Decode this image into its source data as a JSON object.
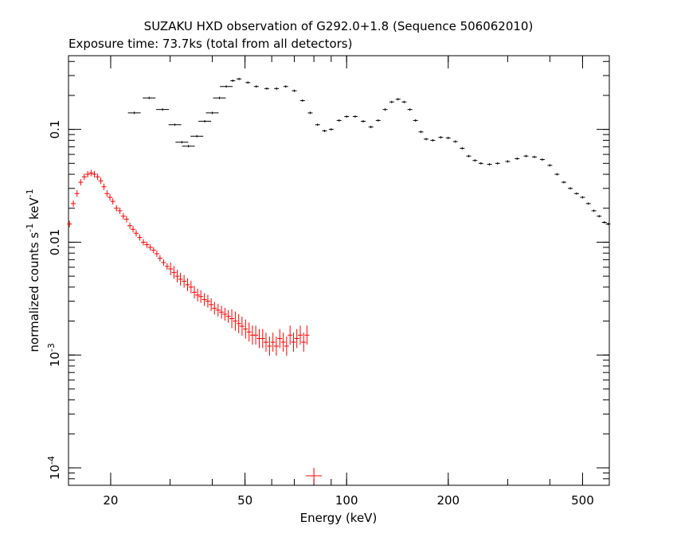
{
  "chart_data": {
    "type": "scatter",
    "title": "SUZAKU HXD observation of G292.0+1.8 (Sequence 506062010)",
    "subtitle": "Exposure time: 73.7ks (total from all detectors)",
    "xlabel": "Energy (keV)",
    "ylabel": "normalized counts s^-1 keV^-1",
    "x_scale": "log",
    "y_scale": "log",
    "xlim": [
      15,
      600
    ],
    "ylim": [
      7e-05,
      0.45
    ],
    "grid": false,
    "x_ticks": [
      {
        "value": 20,
        "label": "20"
      },
      {
        "value": 50,
        "label": "50"
      },
      {
        "value": 100,
        "label": "100"
      },
      {
        "value": 200,
        "label": "200"
      },
      {
        "value": 500,
        "label": "500"
      }
    ],
    "y_ticks": [
      {
        "value": 0.1,
        "label": "0.1"
      },
      {
        "value": 0.01,
        "label": "0.01"
      },
      {
        "value": 0.001,
        "label": "10^-3"
      },
      {
        "value": 0.0001,
        "label": "10^-4"
      }
    ],
    "series": [
      {
        "color": "#ff0000",
        "points": [
          [
            15.1,
            0.0145
          ],
          [
            15.5,
            0.022
          ],
          [
            15.9,
            0.027
          ],
          [
            16.3,
            0.034
          ],
          [
            16.7,
            0.038
          ],
          [
            17.1,
            0.04
          ],
          [
            17.5,
            0.041
          ],
          [
            17.9,
            0.04
          ],
          [
            18.3,
            0.038
          ],
          [
            18.7,
            0.035
          ],
          [
            19.1,
            0.031
          ],
          [
            19.5,
            0.027
          ],
          [
            19.9,
            0.025
          ],
          [
            20.3,
            0.023
          ],
          [
            20.8,
            0.02
          ],
          [
            21.3,
            0.019
          ],
          [
            21.8,
            0.017
          ],
          [
            22.3,
            0.016
          ],
          [
            22.8,
            0.014
          ],
          [
            23.3,
            0.013
          ],
          [
            23.8,
            0.012
          ],
          [
            24.4,
            0.011
          ],
          [
            25.0,
            0.01
          ],
          [
            25.6,
            0.0095
          ],
          [
            26.2,
            0.009
          ],
          [
            26.8,
            0.0085
          ],
          [
            27.4,
            0.0079
          ],
          [
            28.0,
            0.0072
          ],
          [
            28.7,
            0.0066
          ],
          [
            29.4,
            0.0061
          ],
          [
            30.1,
            0.0058
          ],
          [
            30.8,
            0.0054
          ],
          [
            31.5,
            0.005
          ],
          [
            32.2,
            0.0047
          ],
          [
            33.0,
            0.0045
          ],
          [
            33.8,
            0.0042
          ],
          [
            34.6,
            0.004
          ],
          [
            35.4,
            0.0036
          ],
          [
            36.2,
            0.0034
          ],
          [
            37.0,
            0.0033
          ],
          [
            37.9,
            0.0031
          ],
          [
            38.8,
            0.003
          ],
          [
            39.7,
            0.0028
          ],
          [
            40.6,
            0.0026
          ],
          [
            41.6,
            0.0025
          ],
          [
            42.6,
            0.0024
          ],
          [
            43.6,
            0.0023
          ],
          [
            44.6,
            0.0022
          ],
          [
            45.7,
            0.0021
          ],
          [
            46.8,
            0.002
          ],
          [
            47.9,
            0.0019
          ],
          [
            49.0,
            0.0018
          ],
          [
            50.2,
            0.0017
          ],
          [
            51.4,
            0.0016
          ],
          [
            52.6,
            0.0015
          ],
          [
            53.8,
            0.0015
          ],
          [
            55.1,
            0.0014
          ],
          [
            56.4,
            0.0014
          ],
          [
            57.7,
            0.0013
          ],
          [
            59.1,
            0.0012
          ],
          [
            60.5,
            0.0013
          ],
          [
            61.9,
            0.0012
          ],
          [
            63.4,
            0.0014
          ],
          [
            64.9,
            0.0013
          ],
          [
            66.4,
            0.0012
          ],
          [
            68.0,
            0.0015
          ],
          [
            69.6,
            0.0013
          ],
          [
            71.2,
            0.0014
          ],
          [
            72.9,
            0.0015
          ],
          [
            74.6,
            0.0013
          ],
          [
            76.3,
            0.0015
          ],
          [
            80.0,
            8.5e-05
          ]
        ]
      },
      {
        "color": "#000000",
        "points": [
          [
            23.5,
            0.14
          ],
          [
            26.0,
            0.19
          ],
          [
            28.5,
            0.15
          ],
          [
            31.0,
            0.11
          ],
          [
            32.5,
            0.077
          ],
          [
            34.0,
            0.071
          ],
          [
            36.0,
            0.087
          ],
          [
            38.0,
            0.118
          ],
          [
            40.0,
            0.14
          ],
          [
            42.0,
            0.19
          ],
          [
            44.0,
            0.24
          ],
          [
            46.0,
            0.27
          ],
          [
            48.0,
            0.28
          ],
          [
            51.0,
            0.26
          ],
          [
            54.0,
            0.24
          ],
          [
            58.0,
            0.23
          ],
          [
            62.0,
            0.23
          ],
          [
            66.0,
            0.24
          ],
          [
            70.0,
            0.22
          ],
          [
            74.0,
            0.18
          ],
          [
            78.0,
            0.14
          ],
          [
            82.0,
            0.11
          ],
          [
            86.0,
            0.097
          ],
          [
            90.0,
            0.1
          ],
          [
            95.0,
            0.12
          ],
          [
            100.0,
            0.13
          ],
          [
            106.0,
            0.13
          ],
          [
            112.0,
            0.118
          ],
          [
            118.0,
            0.105
          ],
          [
            124.0,
            0.12
          ],
          [
            130.0,
            0.15
          ],
          [
            136.0,
            0.175
          ],
          [
            142.0,
            0.185
          ],
          [
            148.0,
            0.175
          ],
          [
            154.0,
            0.15
          ],
          [
            160.0,
            0.12
          ],
          [
            166.0,
            0.095
          ],
          [
            172.0,
            0.082
          ],
          [
            180.0,
            0.08
          ],
          [
            190.0,
            0.085
          ],
          [
            200.0,
            0.084
          ],
          [
            210.0,
            0.078
          ],
          [
            220.0,
            0.068
          ],
          [
            230.0,
            0.058
          ],
          [
            240.0,
            0.053
          ],
          [
            250.0,
            0.05
          ],
          [
            265.0,
            0.049
          ],
          [
            280.0,
            0.05
          ],
          [
            300.0,
            0.052
          ],
          [
            320.0,
            0.055
          ],
          [
            340.0,
            0.058
          ],
          [
            360.0,
            0.057
          ],
          [
            380.0,
            0.054
          ],
          [
            400.0,
            0.048
          ],
          [
            420.0,
            0.04
          ],
          [
            440.0,
            0.034
          ],
          [
            460.0,
            0.03
          ],
          [
            480.0,
            0.027
          ],
          [
            500.0,
            0.025
          ],
          [
            520.0,
            0.022
          ],
          [
            540.0,
            0.019
          ],
          [
            560.0,
            0.017
          ],
          [
            580.0,
            0.015
          ],
          [
            595.0,
            0.0145
          ]
        ]
      }
    ]
  }
}
